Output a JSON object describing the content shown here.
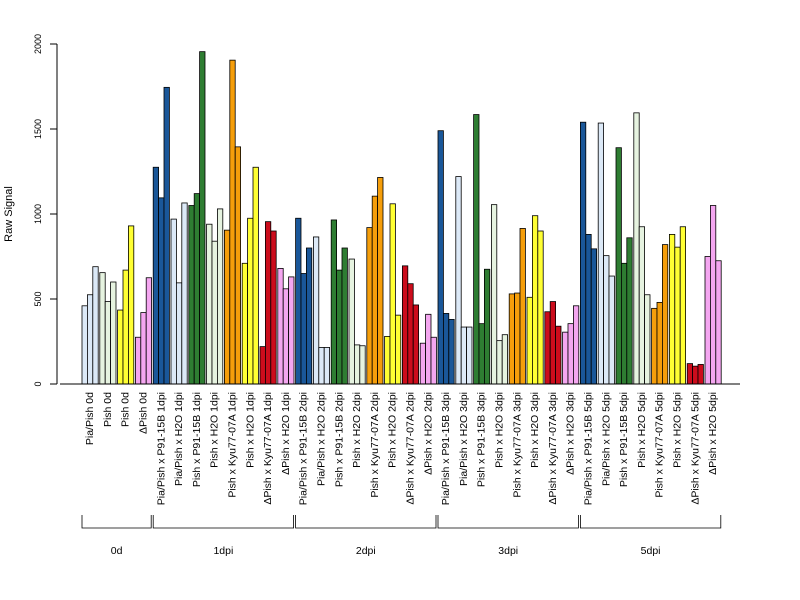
{
  "chart_data": {
    "type": "bar",
    "title": "",
    "ylabel": "Raw Signal",
    "xlabel": "",
    "ylim": [
      0,
      2000
    ],
    "yticks": [
      0,
      500,
      1000,
      1500,
      2000
    ],
    "grid": false,
    "legend": "none",
    "colors": {
      "Pia/Pish": "#dce9f7",
      "Pia/Pish x P91-15B": "#1a5799",
      "Pia/Pish x H2O": "#dce9f7",
      "Pish x P91-15B": "#2e7d32",
      "Pish x H2O": "#e6f3e0",
      "Pish x Kyu77-07A": "#f59e0b",
      "Pish": "#ffff33",
      "Pish x H2O (yellow)": "#ffff33",
      "ΔPish x Kyu77-07A": "#cc0c1c",
      "ΔPish x H2O": "#f4a6f0",
      "ΔPish": "#f4a6f0"
    },
    "categories": [
      {
        "label": "Pia/Pish 0d",
        "group": "0d",
        "color": "#dce9f7",
        "values": [
          460,
          525,
          690
        ]
      },
      {
        "label": "Pish 0d",
        "group": "0d",
        "color": "#e6f3e0",
        "values": [
          655,
          485,
          600
        ]
      },
      {
        "label": "Pish 0d",
        "group": "0d",
        "color": "#ffff33",
        "values": [
          435,
          670,
          930
        ]
      },
      {
        "label": "ΔPish 0d",
        "group": "0d",
        "color": "#f4a6f0",
        "values": [
          275,
          420,
          625
        ]
      },
      {
        "label": "Pia/Pish x P91-15B 1dpi",
        "group": "1dpi",
        "color": "#1a5799",
        "values": [
          1275,
          1095,
          1745
        ]
      },
      {
        "label": "Pia/Pish x H2O 1dpi",
        "group": "1dpi",
        "color": "#dce9f7",
        "values": [
          970,
          595,
          1065
        ]
      },
      {
        "label": "Pish x P91-15B 1dpi",
        "group": "1dpi",
        "color": "#2e7d32",
        "values": [
          1050,
          1120,
          1955
        ]
      },
      {
        "label": "Pish x H2O 1dpi",
        "group": "1dpi",
        "color": "#e6f3e0",
        "values": [
          940,
          840,
          1030
        ]
      },
      {
        "label": "Pish x Kyu77-07A 1dpi",
        "group": "1dpi",
        "color": "#f59e0b",
        "values": [
          905,
          1905,
          1395
        ]
      },
      {
        "label": "Pish x H2O 1dpi",
        "group": "1dpi",
        "color": "#ffff33",
        "values": [
          710,
          975,
          1275
        ]
      },
      {
        "label": "ΔPish x Kyu77-07A 1dpi",
        "group": "1dpi",
        "color": "#cc0c1c",
        "values": [
          220,
          955,
          900
        ]
      },
      {
        "label": "ΔPish x H2O 1dpi",
        "group": "1dpi",
        "color": "#f4a6f0",
        "values": [
          680,
          560,
          630
        ]
      },
      {
        "label": "Pia/Pish x P91-15B 2dpi",
        "group": "2dpi",
        "color": "#1a5799",
        "values": [
          975,
          650,
          800
        ]
      },
      {
        "label": "Pia/Pish x H2O 2dpi",
        "group": "2dpi",
        "color": "#dce9f7",
        "values": [
          865,
          215,
          215
        ]
      },
      {
        "label": "Pish x P91-15B 2dpi",
        "group": "2dpi",
        "color": "#2e7d32",
        "values": [
          965,
          670,
          800
        ]
      },
      {
        "label": "Pish x H2O 2dpi",
        "group": "2dpi",
        "color": "#e6f3e0",
        "values": [
          735,
          230,
          225
        ]
      },
      {
        "label": "Pish x Kyu77-07A 2dpi",
        "group": "2dpi",
        "color": "#f59e0b",
        "values": [
          920,
          1105,
          1215
        ]
      },
      {
        "label": "Pish x H2O 2dpi",
        "group": "2dpi",
        "color": "#ffff33",
        "values": [
          280,
          1060,
          405
        ]
      },
      {
        "label": "ΔPish x Kyu77-07A 2dpi",
        "group": "2dpi",
        "color": "#cc0c1c",
        "values": [
          695,
          590,
          465
        ]
      },
      {
        "label": "ΔPish x H2O 2dpi",
        "group": "2dpi",
        "color": "#f4a6f0",
        "values": [
          240,
          410,
          275
        ]
      },
      {
        "label": "Pia/Pish x P91-15B 3dpi",
        "group": "3dpi",
        "color": "#1a5799",
        "values": [
          1490,
          415,
          380
        ]
      },
      {
        "label": "Pia/Pish x H2O 3dpi",
        "group": "3dpi",
        "color": "#dce9f7",
        "values": [
          1220,
          335,
          335
        ]
      },
      {
        "label": "Pish x P91-15B 3dpi",
        "group": "3dpi",
        "color": "#2e7d32",
        "values": [
          1585,
          355,
          675
        ]
      },
      {
        "label": "Pish x H2O 3dpi",
        "group": "3dpi",
        "color": "#e6f3e0",
        "values": [
          1055,
          255,
          290
        ]
      },
      {
        "label": "Pish x Kyu77-07A 3dpi",
        "group": "3dpi",
        "color": "#f59e0b",
        "values": [
          530,
          535,
          915
        ]
      },
      {
        "label": "Pish x H2O 3dpi",
        "group": "3dpi",
        "color": "#ffff33",
        "values": [
          510,
          990,
          900
        ]
      },
      {
        "label": "ΔPish x Kyu77-07A 3dpi",
        "group": "3dpi",
        "color": "#cc0c1c",
        "values": [
          425,
          485,
          340
        ]
      },
      {
        "label": "ΔPish x H2O 3dpi",
        "group": "3dpi",
        "color": "#f4a6f0",
        "values": [
          305,
          355,
          460
        ]
      },
      {
        "label": "Pia/Pish x P91-15B 5dpi",
        "group": "5dpi",
        "color": "#1a5799",
        "values": [
          1540,
          880,
          795
        ]
      },
      {
        "label": "Pia/Pish x H2O 5dpi",
        "group": "5dpi",
        "color": "#dce9f7",
        "values": [
          1535,
          755,
          635
        ]
      },
      {
        "label": "Pish x P91-15B 5dpi",
        "group": "5dpi",
        "color": "#2e7d32",
        "values": [
          1390,
          710,
          860
        ]
      },
      {
        "label": "Pish x H2O 5dpi",
        "group": "5dpi",
        "color": "#e6f3e0",
        "values": [
          1595,
          925,
          525
        ]
      },
      {
        "label": "Pish x Kyu77-07A 5dpi",
        "group": "5dpi",
        "color": "#f59e0b",
        "values": [
          445,
          480,
          820
        ]
      },
      {
        "label": "Pish x H2O 5dpi",
        "group": "5dpi",
        "color": "#ffff33",
        "values": [
          880,
          805,
          925
        ]
      },
      {
        "label": "ΔPish x Kyu77-07A 5dpi",
        "group": "5dpi",
        "color": "#cc0c1c",
        "values": [
          120,
          105,
          115
        ]
      },
      {
        "label": "ΔPish x H2O 5dpi",
        "group": "5dpi",
        "color": "#f4a6f0",
        "values": [
          750,
          1050,
          725
        ]
      }
    ],
    "groups": [
      {
        "label": "0d",
        "start": 0,
        "end": 3
      },
      {
        "label": "1dpi",
        "start": 4,
        "end": 11
      },
      {
        "label": "2dpi",
        "start": 12,
        "end": 19
      },
      {
        "label": "3dpi",
        "start": 20,
        "end": 27
      },
      {
        "label": "5dpi",
        "start": 28,
        "end": 35
      }
    ]
  }
}
